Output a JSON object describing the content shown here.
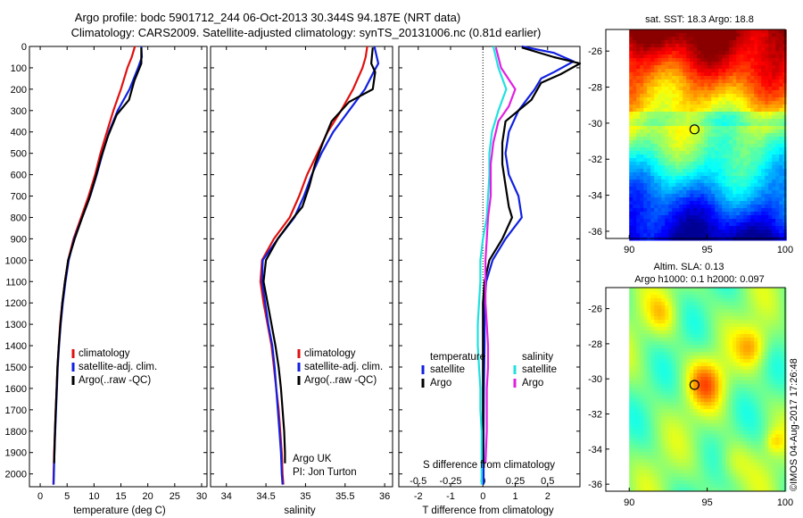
{
  "header": {
    "line1": "Argo profile: bodc 5901712_244 06-Oct-2013 30.344S 94.187E (NRT data)",
    "line2": "Climatology: CARS2009. Satellite-adjusted climatology: synTS_20131006.nc (0.81d earlier)"
  },
  "footer": {
    "credit": "©IMOS 04-Aug-2017 17:26:48",
    "float_owner": "Argo UK",
    "pi": "PI: Jon Turton"
  },
  "colors": {
    "climatology": "#e01010",
    "satellite": "#1020e0",
    "argo": "#000000",
    "t_sat": "#1020e0",
    "t_argo": "#000000",
    "s_sat": "#20e0e0",
    "s_argo": "#e020e0"
  },
  "chart_data": [
    {
      "type": "line",
      "id": "temperature-profile",
      "xlabel": "temperature (deg C)",
      "ylabel": "",
      "xlim": [
        -2,
        31
      ],
      "ylim": [
        2060,
        0
      ],
      "xticks": [
        0,
        5,
        10,
        15,
        20,
        25,
        30
      ],
      "yticks": [
        0,
        100,
        200,
        300,
        400,
        500,
        600,
        700,
        800,
        900,
        1000,
        1100,
        1200,
        1300,
        1400,
        1500,
        1600,
        1700,
        1800,
        1900,
        2000
      ],
      "legend": [
        "climatology",
        "satellite-adj. clim.",
        "Argo(..raw -QC)"
      ],
      "series": [
        {
          "name": "climatology",
          "color_key": "climatology",
          "points": [
            [
              17.6,
              0
            ],
            [
              17.0,
              50
            ],
            [
              16.2,
              100
            ],
            [
              15.0,
              200
            ],
            [
              13.6,
              300
            ],
            [
              12.4,
              400
            ],
            [
              11.2,
              500
            ],
            [
              10.2,
              600
            ],
            [
              9.0,
              700
            ],
            [
              7.6,
              800
            ],
            [
              6.2,
              900
            ],
            [
              5.2,
              1000
            ],
            [
              4.6,
              1100
            ],
            [
              4.1,
              1200
            ],
            [
              3.7,
              1300
            ],
            [
              3.45,
              1400
            ],
            [
              3.2,
              1500
            ],
            [
              3.05,
              1600
            ],
            [
              2.9,
              1700
            ],
            [
              2.75,
              1800
            ],
            [
              2.6,
              1900
            ],
            [
              2.5,
              2000
            ],
            [
              2.45,
              2050
            ]
          ]
        },
        {
          "name": "satellite-adj. clim.",
          "color_key": "satellite",
          "points": [
            [
              18.8,
              0
            ],
            [
              18.9,
              50
            ],
            [
              18.2,
              100
            ],
            [
              16.6,
              200
            ],
            [
              14.4,
              300
            ],
            [
              12.8,
              400
            ],
            [
              11.6,
              500
            ],
            [
              10.5,
              600
            ],
            [
              9.3,
              700
            ],
            [
              7.8,
              800
            ],
            [
              6.3,
              900
            ],
            [
              5.3,
              1000
            ],
            [
              4.7,
              1100
            ],
            [
              4.2,
              1200
            ],
            [
              3.8,
              1300
            ],
            [
              3.5,
              1400
            ],
            [
              3.25,
              1500
            ],
            [
              3.1,
              1600
            ],
            [
              2.95,
              1700
            ],
            [
              2.8,
              1800
            ],
            [
              2.65,
              1900
            ],
            [
              2.55,
              2000
            ],
            [
              2.5,
              2050
            ]
          ]
        },
        {
          "name": "Argo(..raw -QC)",
          "color_key": "argo",
          "points": [
            [
              18.8,
              5
            ],
            [
              18.8,
              80
            ],
            [
              17.5,
              160
            ],
            [
              16.5,
              250
            ],
            [
              14.2,
              320
            ],
            [
              12.6,
              420
            ],
            [
              11.3,
              520
            ],
            [
              10.2,
              620
            ],
            [
              9.0,
              720
            ],
            [
              7.8,
              800
            ],
            [
              6.4,
              900
            ],
            [
              5.2,
              1000
            ],
            [
              4.6,
              1100
            ],
            [
              4.1,
              1200
            ],
            [
              3.75,
              1300
            ],
            [
              3.45,
              1400
            ],
            [
              3.2,
              1500
            ],
            [
              3.05,
              1600
            ],
            [
              2.9,
              1700
            ],
            [
              2.75,
              1800
            ],
            [
              2.65,
              1900
            ],
            [
              2.6,
              1950
            ]
          ]
        }
      ]
    },
    {
      "type": "line",
      "id": "salinity-profile",
      "xlabel": "salinity",
      "ylabel": "",
      "xlim": [
        33.8,
        36.1
      ],
      "ylim": [
        2060,
        0
      ],
      "xticks": [
        34,
        34.5,
        35,
        35.5,
        36
      ],
      "xticklabels": [
        "34",
        "34.5",
        "35",
        "35.5",
        "36"
      ],
      "legend": [
        "climatology",
        "satellite-adj. clim.",
        "Argo(..raw -QC)"
      ],
      "series": [
        {
          "name": "climatology",
          "color_key": "climatology",
          "points": [
            [
              35.78,
              0
            ],
            [
              35.76,
              50
            ],
            [
              35.72,
              100
            ],
            [
              35.6,
              200
            ],
            [
              35.45,
              300
            ],
            [
              35.28,
              400
            ],
            [
              35.15,
              500
            ],
            [
              35.02,
              600
            ],
            [
              34.92,
              700
            ],
            [
              34.8,
              800
            ],
            [
              34.6,
              900
            ],
            [
              34.45,
              1000
            ],
            [
              34.43,
              1100
            ],
            [
              34.47,
              1200
            ],
            [
              34.52,
              1300
            ],
            [
              34.57,
              1400
            ],
            [
              34.6,
              1500
            ],
            [
              34.63,
              1600
            ],
            [
              34.66,
              1700
            ],
            [
              34.68,
              1800
            ],
            [
              34.7,
              1900
            ],
            [
              34.71,
              2000
            ],
            [
              34.72,
              2050
            ]
          ]
        },
        {
          "name": "satellite-adj. clim.",
          "color_key": "satellite",
          "points": [
            [
              35.87,
              0
            ],
            [
              35.92,
              80
            ],
            [
              35.86,
              120
            ],
            [
              35.75,
              200
            ],
            [
              35.55,
              300
            ],
            [
              35.35,
              400
            ],
            [
              35.2,
              500
            ],
            [
              35.08,
              600
            ],
            [
              34.98,
              700
            ],
            [
              34.86,
              800
            ],
            [
              34.65,
              900
            ],
            [
              34.46,
              1000
            ],
            [
              34.45,
              1100
            ],
            [
              34.49,
              1200
            ],
            [
              34.53,
              1300
            ],
            [
              34.58,
              1400
            ],
            [
              34.61,
              1500
            ],
            [
              34.63,
              1600
            ],
            [
              34.65,
              1700
            ],
            [
              34.67,
              1800
            ],
            [
              34.69,
              1900
            ],
            [
              34.7,
              2000
            ],
            [
              34.71,
              2050
            ]
          ]
        },
        {
          "name": "Argo(..raw -QC)",
          "color_key": "argo",
          "points": [
            [
              35.85,
              5
            ],
            [
              35.83,
              80
            ],
            [
              35.88,
              120
            ],
            [
              35.85,
              200
            ],
            [
              35.55,
              260
            ],
            [
              35.33,
              350
            ],
            [
              35.22,
              450
            ],
            [
              35.12,
              550
            ],
            [
              35.05,
              650
            ],
            [
              34.96,
              750
            ],
            [
              34.85,
              800
            ],
            [
              34.65,
              900
            ],
            [
              34.5,
              1000
            ],
            [
              34.47,
              1100
            ],
            [
              34.52,
              1200
            ],
            [
              34.57,
              1300
            ],
            [
              34.62,
              1400
            ],
            [
              34.66,
              1500
            ],
            [
              34.69,
              1600
            ],
            [
              34.71,
              1700
            ],
            [
              34.73,
              1800
            ],
            [
              34.74,
              1900
            ],
            [
              34.74,
              1950
            ]
          ]
        }
      ]
    },
    {
      "type": "line",
      "id": "difference-profile",
      "xlabel": "T difference from climatology",
      "x2label": "S difference from climatology",
      "xlim": [
        -2.6,
        3.0
      ],
      "ylim": [
        2060,
        0
      ],
      "xticks": [
        -2,
        -1,
        0,
        1,
        2
      ],
      "x2lim": [
        -0.65,
        0.75
      ],
      "x2ticks": [
        -0.5,
        -0.25,
        0,
        0.25,
        0.5
      ],
      "x2ticklabels": [
        "-0.5",
        "-0.25",
        "0",
        "0.25",
        "0.5"
      ],
      "legend_titles": [
        "temperature",
        "salinity"
      ],
      "legend": [
        "satellite",
        "Argo",
        "satellite",
        "Argo"
      ],
      "series": [
        {
          "name": "satellite",
          "group": "temperature",
          "axis": "T",
          "color_key": "t_sat",
          "points": [
            [
              1.2,
              0
            ],
            [
              2.2,
              30
            ],
            [
              2.8,
              70
            ],
            [
              2.2,
              120
            ],
            [
              1.8,
              150
            ],
            [
              1.6,
              200
            ],
            [
              1.1,
              300
            ],
            [
              0.8,
              400
            ],
            [
              0.7,
              500
            ],
            [
              0.8,
              600
            ],
            [
              1.1,
              700
            ],
            [
              1.2,
              800
            ],
            [
              0.7,
              900
            ],
            [
              0.3,
              1000
            ],
            [
              0.1,
              1100
            ],
            [
              0.05,
              1200
            ],
            [
              0.05,
              1400
            ],
            [
              0.03,
              1600
            ],
            [
              0.02,
              1800
            ],
            [
              0.02,
              2050
            ]
          ]
        },
        {
          "name": "Argo",
          "group": "temperature",
          "axis": "T",
          "color_key": "t_argo",
          "points": [
            [
              1.2,
              5
            ],
            [
              2.2,
              50
            ],
            [
              3.0,
              80
            ],
            [
              2.4,
              130
            ],
            [
              1.8,
              170
            ],
            [
              1.5,
              250
            ],
            [
              0.7,
              350
            ],
            [
              0.6,
              450
            ],
            [
              0.6,
              550
            ],
            [
              0.7,
              650
            ],
            [
              0.8,
              750
            ],
            [
              0.9,
              800
            ],
            [
              0.6,
              900
            ],
            [
              0.2,
              1000
            ],
            [
              0.05,
              1100
            ],
            [
              0.0,
              1200
            ],
            [
              0.0,
              1500
            ],
            [
              0.0,
              1700
            ],
            [
              0.0,
              1950
            ]
          ]
        },
        {
          "name": "satellite",
          "group": "salinity",
          "axis": "S",
          "color_key": "s_sat",
          "points": [
            [
              0.08,
              0
            ],
            [
              0.12,
              100
            ],
            [
              0.18,
              200
            ],
            [
              0.12,
              300
            ],
            [
              0.07,
              400
            ],
            [
              0.05,
              500
            ],
            [
              0.05,
              600
            ],
            [
              0.03,
              800
            ],
            [
              0.0,
              900
            ],
            [
              -0.02,
              1000
            ],
            [
              -0.02,
              1100
            ],
            [
              -0.03,
              1200
            ],
            [
              -0.04,
              1300
            ],
            [
              -0.04,
              1400
            ],
            [
              -0.03,
              1500
            ],
            [
              -0.02,
              1600
            ],
            [
              -0.02,
              1700
            ],
            [
              -0.01,
              1800
            ],
            [
              -0.01,
              1900
            ],
            [
              -0.01,
              2050
            ]
          ]
        },
        {
          "name": "Argo",
          "group": "salinity",
          "axis": "S",
          "color_key": "s_argo",
          "points": [
            [
              0.1,
              5
            ],
            [
              0.14,
              100
            ],
            [
              0.25,
              200
            ],
            [
              0.2,
              280
            ],
            [
              0.12,
              350
            ],
            [
              0.08,
              450
            ],
            [
              0.06,
              550
            ],
            [
              0.06,
              700
            ],
            [
              0.04,
              800
            ],
            [
              0.03,
              900
            ],
            [
              0.02,
              1000
            ],
            [
              0.02,
              1200
            ],
            [
              0.03,
              1300
            ],
            [
              0.04,
              1400
            ],
            [
              0.04,
              1500
            ],
            [
              0.03,
              1600
            ],
            [
              0.03,
              1800
            ],
            [
              0.02,
              1950
            ]
          ]
        }
      ]
    },
    {
      "type": "heatmap",
      "id": "sst-map",
      "title": "sat. SST: 18.3 Argo: 18.8",
      "xlim": [
        88.5,
        100
      ],
      "ylim": [
        -36.4,
        -24.8
      ],
      "xticks": [
        90,
        95,
        100
      ],
      "yticks": [
        -26,
        -28,
        -30,
        -32,
        -34,
        -36
      ],
      "marker": {
        "lon": 94.187,
        "lat": -30.344
      },
      "colormap": "jet"
    },
    {
      "type": "heatmap",
      "id": "sla-map",
      "title": "Altim. SLA: 0.13",
      "subtitle": "Argo h1000: 0.1 h2000: 0.097",
      "xlim": [
        88.5,
        100
      ],
      "ylim": [
        -36.4,
        -24.8
      ],
      "xticks": [
        90,
        95,
        100
      ],
      "yticks": [
        -26,
        -28,
        -30,
        -32,
        -34,
        -36
      ],
      "marker": {
        "lon": 94.187,
        "lat": -30.344
      },
      "colormap": "jet"
    }
  ]
}
